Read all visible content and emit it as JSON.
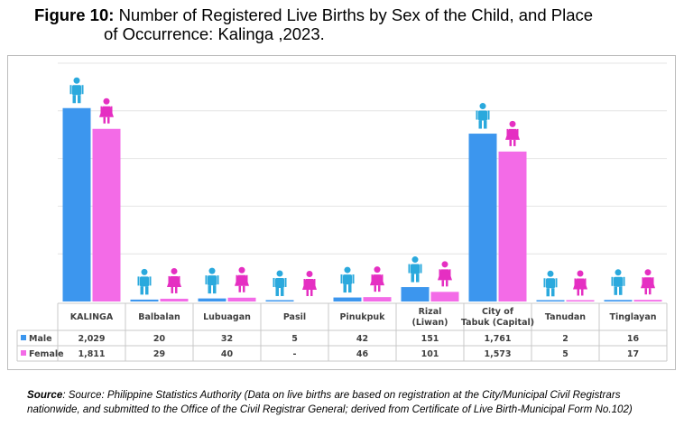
{
  "figure": {
    "label": "Figure 10:",
    "title_line1": "Number of Registered Live Births by Sex of the Child, and Place",
    "title_line2": "of Occurrence: Kalinga ,2023."
  },
  "source": {
    "label": "Source",
    "text": ": Source: Philippine Statistics Authority (Data on live births are based on registration at the City/Municipal Civil Registrars nationwide, and submitted to the Office of the Civil Registrar General; derived from Certificate of Live Birth-Municipal Form No.102)"
  },
  "colors": {
    "male": "#3c96ee",
    "female": "#f36be7",
    "male_icon": "#2aa9dd",
    "female_icon": "#e52fc2",
    "grid": "#e4e4e4",
    "table_border": "#c8c8c8"
  },
  "chart_data": {
    "type": "bar",
    "categories": [
      [
        "KALINGA"
      ],
      [
        "Balbalan"
      ],
      [
        "Lubuagan"
      ],
      [
        "Pasil"
      ],
      [
        "Pinukpuk"
      ],
      [
        "Rizal",
        "(Liwan)"
      ],
      [
        "City of",
        "Tabuk (Capital)"
      ],
      [
        "Tanudan"
      ],
      [
        "Tinglayan"
      ]
    ],
    "series": [
      {
        "name": "Male",
        "values": [
          2029,
          20,
          32,
          5,
          42,
          151,
          1761,
          2,
          16
        ],
        "labels": [
          "2,029",
          "20",
          "32",
          "5",
          "42",
          "151",
          "1,761",
          "2",
          "16"
        ]
      },
      {
        "name": "Female",
        "values": [
          1811,
          29,
          40,
          0,
          46,
          101,
          1573,
          5,
          17
        ],
        "labels": [
          "1,811",
          "29",
          "40",
          "-",
          "46",
          "101",
          "1,573",
          "5",
          "17"
        ]
      }
    ],
    "ylim": [
      0,
      2500
    ],
    "grid": true,
    "data_table": true,
    "icons": [
      "male-person-icon",
      "female-person-icon"
    ]
  }
}
